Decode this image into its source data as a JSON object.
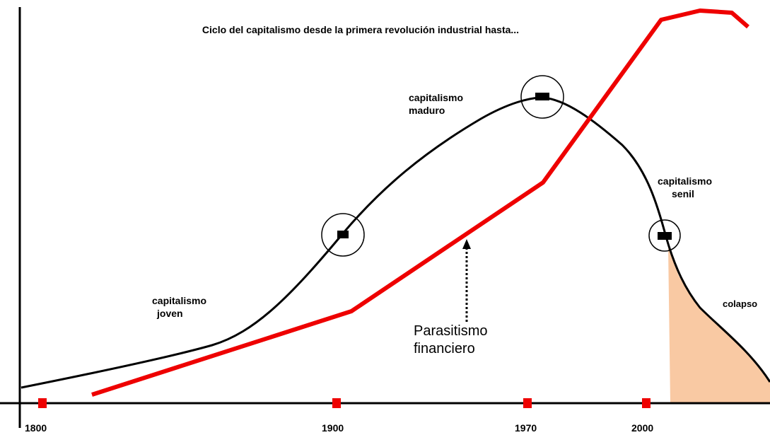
{
  "title": "Ciclo del capitalismo desde la primera revolución industrial hasta...",
  "stages": {
    "joven": [
      "capitalismo",
      "joven"
    ],
    "maduro": [
      "capitalismo",
      "maduro"
    ],
    "senil": [
      "capitalismo",
      "senil"
    ],
    "colapso": "colapso"
  },
  "annotation": [
    "Parasitismo",
    "financiero"
  ],
  "years": [
    "1800",
    "1900",
    "1970",
    "2000"
  ]
}
